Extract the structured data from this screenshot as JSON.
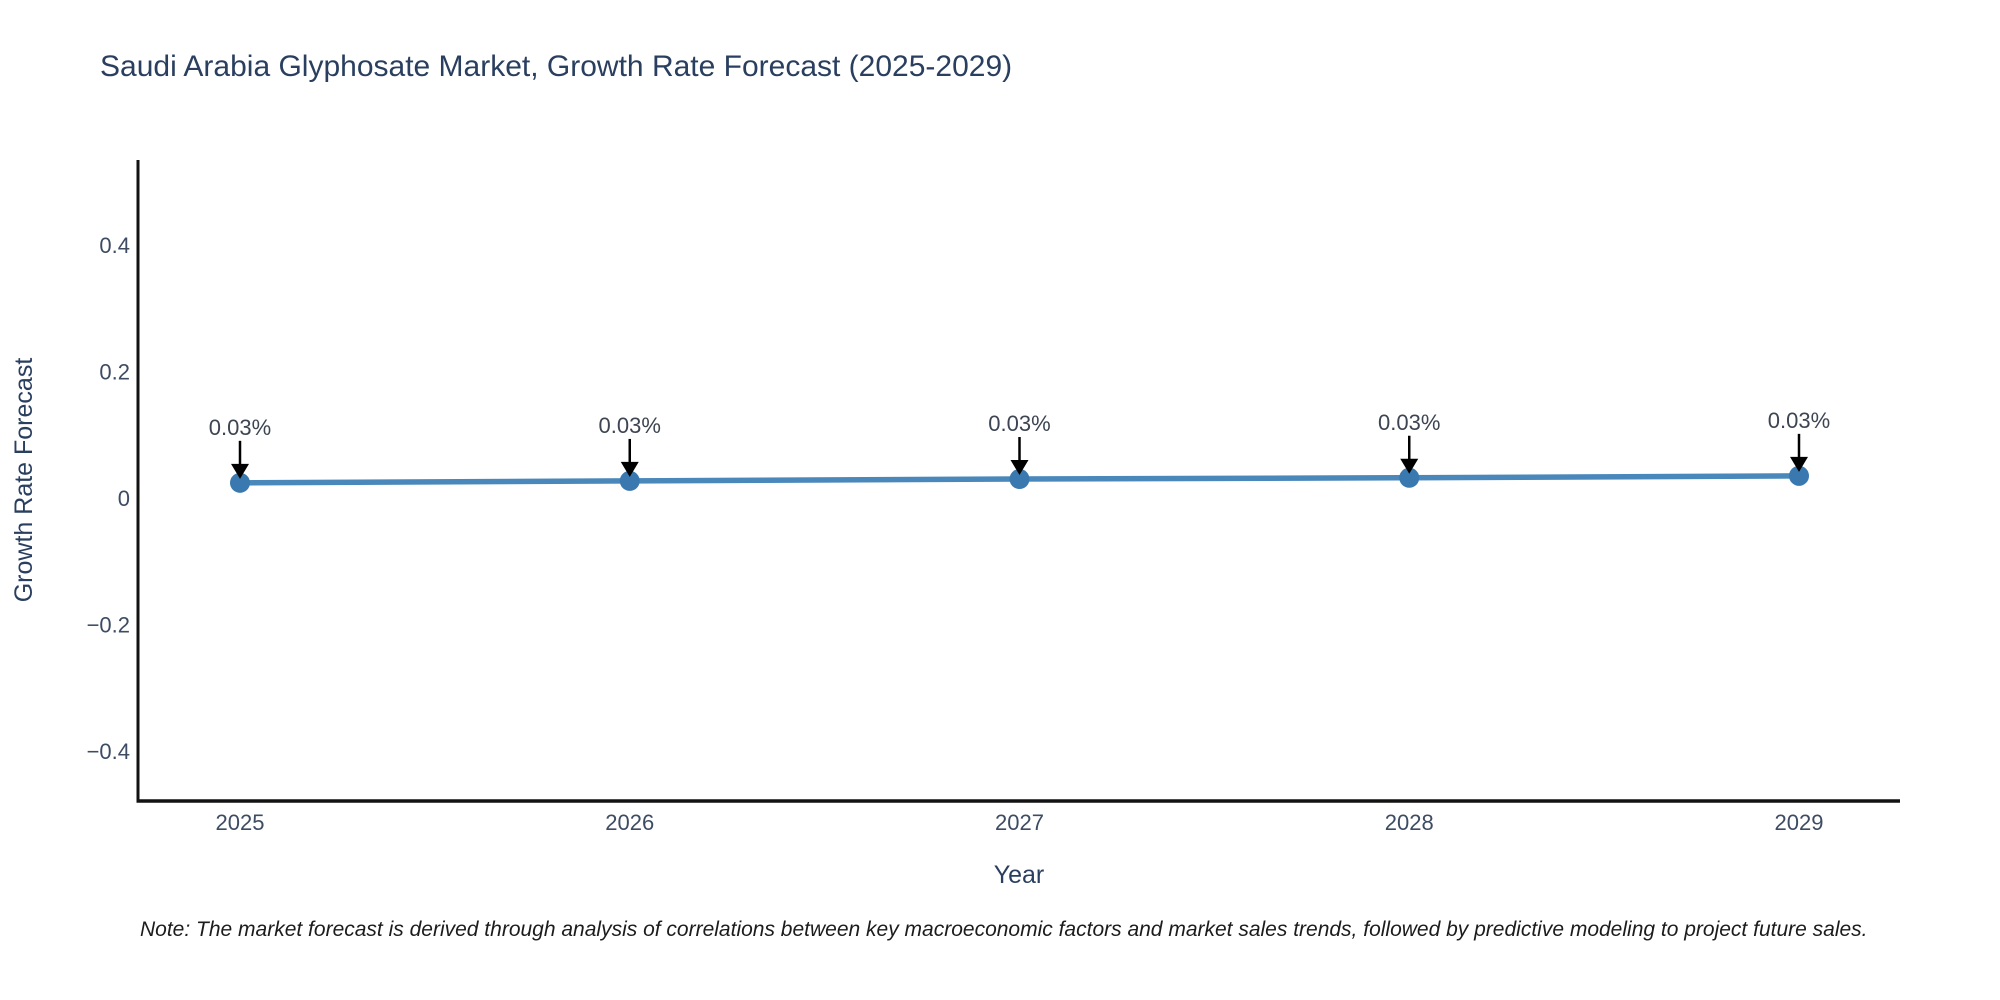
{
  "title": "Saudi Arabia Glyphosate Market, Growth Rate Forecast (2025-2029)",
  "note": "Note: The market forecast is derived through analysis of correlations between key macroeconomic factors and market sales trends, followed by predictive modeling to project future sales.",
  "chart_data": {
    "type": "line",
    "title": "Saudi Arabia Glyphosate Market, Growth Rate Forecast (2025-2029)",
    "xlabel": "Year",
    "ylabel": "Growth Rate Forecast",
    "x": [
      2025,
      2026,
      2027,
      2028,
      2029
    ],
    "xtick_labels": [
      "2025",
      "2026",
      "2027",
      "2028",
      "2029"
    ],
    "yticks": [
      0.4,
      0.2,
      0,
      -0.2,
      -0.4
    ],
    "ytick_labels": [
      "0.4",
      "0.2",
      "0",
      "−0.2",
      "−0.4"
    ],
    "ylim": [
      -0.48,
      0.53
    ],
    "grid": false,
    "legend": "none",
    "series": [
      {
        "name": "Growth Rate Forecast",
        "values": [
          0.03,
          0.03,
          0.03,
          0.03,
          0.03
        ],
        "values_estimated": [
          0.024,
          0.027,
          0.03,
          0.032,
          0.035
        ]
      }
    ],
    "point_labels": [
      "0.03%",
      "0.03%",
      "0.03%",
      "0.03%",
      "0.03%"
    ],
    "colors": {
      "line": "#4a88bb",
      "marker": "#3a78b0",
      "arrow": "#000000",
      "title": "#2a3f5f",
      "axis_text": "#3d4c63",
      "annotation": "#3d4552",
      "spine": "#121212",
      "background": "#ffffff"
    }
  }
}
